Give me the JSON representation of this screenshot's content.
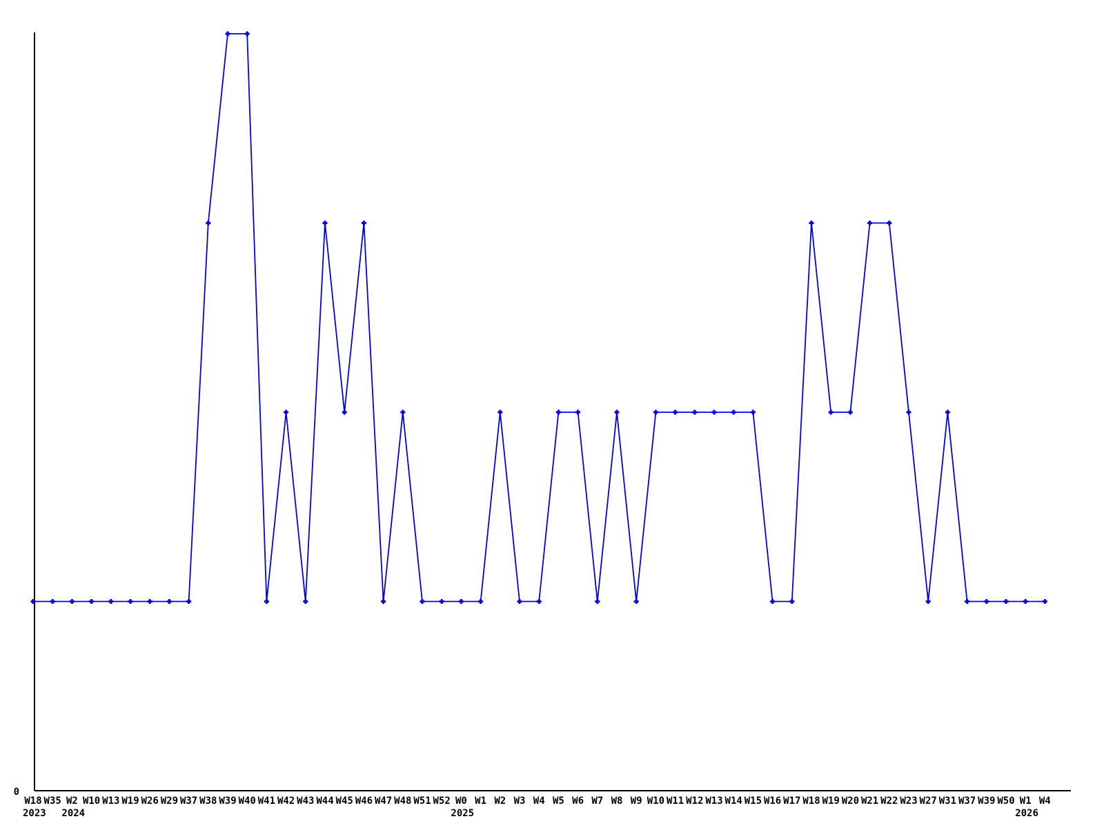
{
  "chart_data": {
    "type": "line",
    "title": "",
    "x_tick_labels": [
      "W18",
      "W35",
      "W2",
      "W10",
      "W13",
      "W19",
      "W26",
      "W29",
      "W37",
      "W38",
      "W39",
      "W40",
      "W41",
      "W42",
      "W43",
      "W44",
      "W45",
      "W46",
      "W47",
      "W48",
      "W51",
      "W52",
      "W0",
      "W1",
      "W2",
      "W3",
      "W4",
      "W5",
      "W6",
      "W7",
      "W8",
      "W9",
      "W10",
      "W11",
      "W12",
      "W13",
      "W14",
      "W15",
      "W16",
      "W17",
      "W18",
      "W19",
      "W20",
      "W21",
      "W22",
      "W23",
      "W27",
      "W31",
      "W37",
      "W39",
      "W50",
      "W1",
      "W4"
    ],
    "values": [
      1,
      1,
      1,
      1,
      1,
      1,
      1,
      1,
      1,
      3,
      4,
      4,
      1,
      2,
      1,
      3,
      2,
      3,
      1,
      2,
      1,
      1,
      1,
      1,
      2,
      1,
      1,
      2,
      2,
      1,
      2,
      1,
      2,
      2,
      2,
      2,
      2,
      2,
      1,
      1,
      3,
      2,
      2,
      3,
      3,
      2,
      1,
      2,
      1,
      1,
      1,
      1,
      1
    ],
    "year_markers": [
      {
        "label": "2023",
        "index": 0
      },
      {
        "label": "2024",
        "index": 2
      },
      {
        "label": "2025",
        "index": 22
      },
      {
        "label": "2026",
        "index": 51
      }
    ],
    "y_axis": {
      "origin_label": "0",
      "ylim": [
        0,
        4
      ],
      "visible_ticks": [
        "0"
      ]
    },
    "style": {
      "line_color": "#0000e0",
      "marker": "plus",
      "axis_color": "#000000",
      "grid": false
    }
  }
}
